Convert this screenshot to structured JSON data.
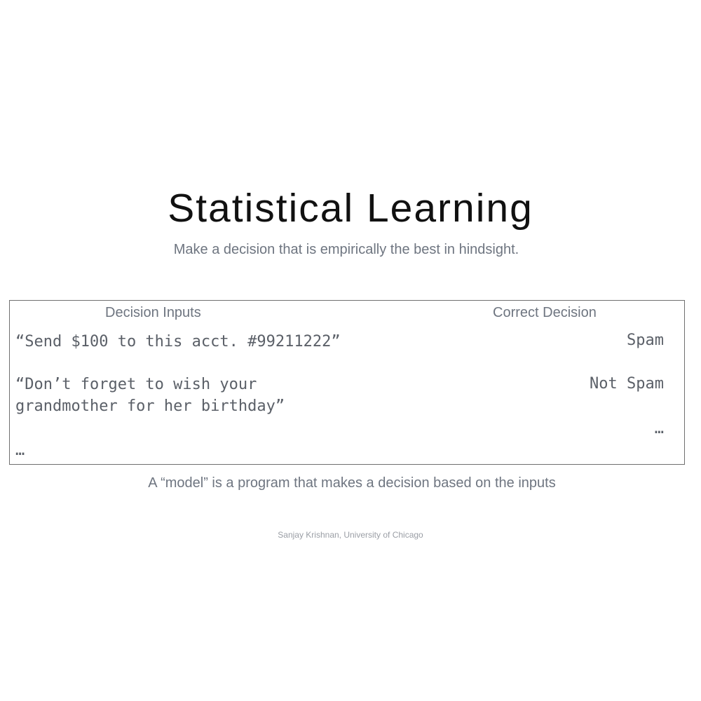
{
  "slide": {
    "title": "Statistical Learning",
    "subtitle": "Make a decision that is empirically the best in hindsight."
  },
  "table": {
    "headers": {
      "inputs": "Decision Inputs",
      "decision": "Correct Decision"
    },
    "inputs": [
      "“Send $100 to this acct. #99211222”",
      "“Don’t forget to wish your\ngrandmother for her birthday”",
      "…"
    ],
    "decisions": [
      "Spam",
      "Not Spam",
      "…"
    ]
  },
  "caption": "A “model” is a program that makes a decision based on the inputs",
  "footer": "Sanjay Krishnan, University of Chicago"
}
